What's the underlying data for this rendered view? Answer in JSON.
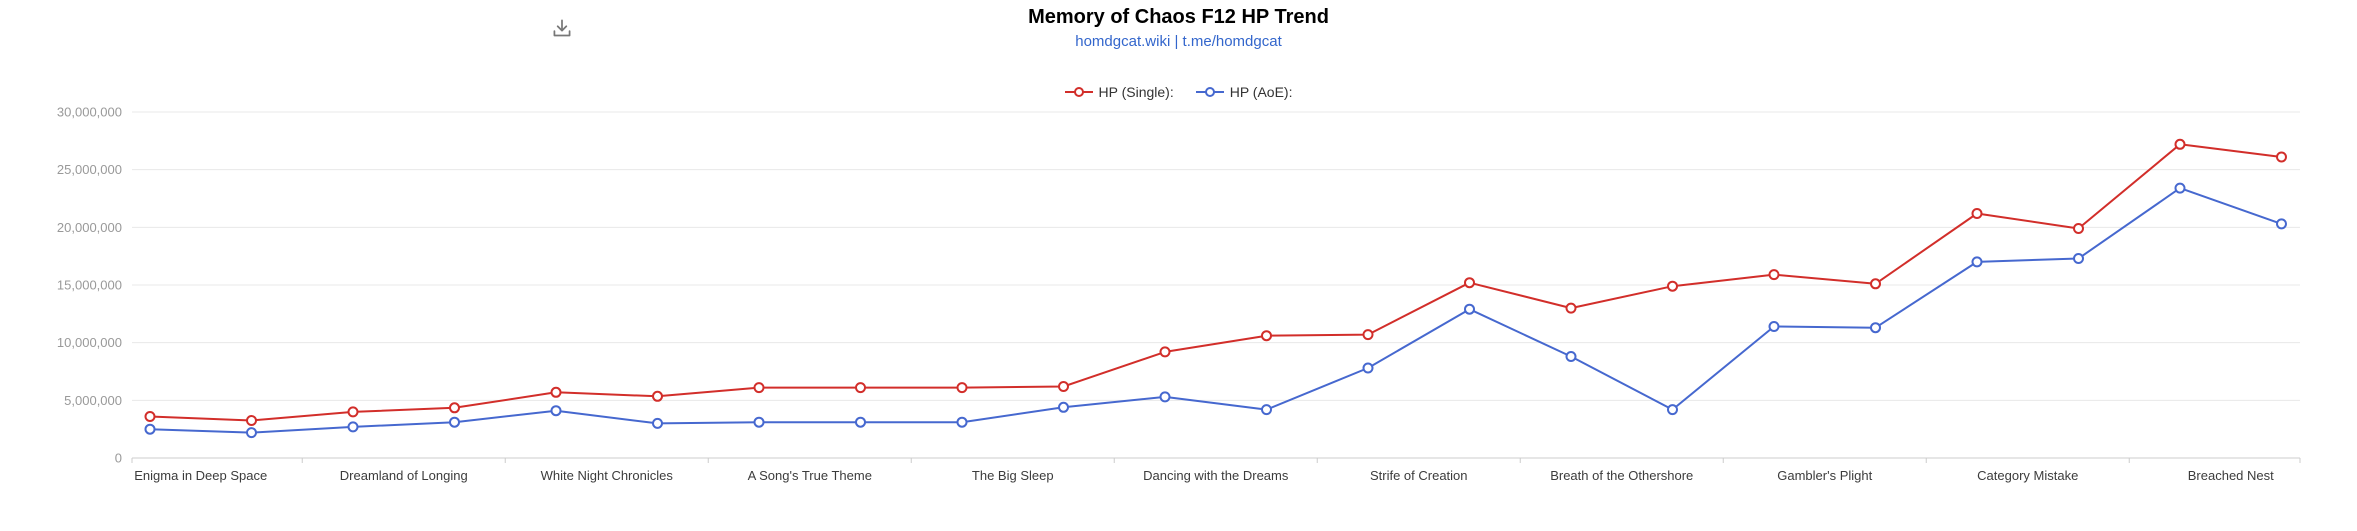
{
  "header": {
    "title": "Memory of Chaos F12 HP Trend",
    "subtitle": "homdgcat.wiki | t.me/homdgcat"
  },
  "toolbox": {
    "download_icon": "save-as-image-icon"
  },
  "legend": {
    "items": [
      {
        "label": "HP (Single):",
        "color": "#d22e2a"
      },
      {
        "label": "HP (AoE):",
        "color": "#4668cf"
      }
    ]
  },
  "chart_data": {
    "type": "line",
    "title": "Memory of Chaos F12 HP Trend",
    "subtitle": "homdgcat.wiki | t.me/homdgcat",
    "categories": [
      "Enigma in Deep Space",
      "Dreamland of Longing",
      "White Night Chronicles",
      "A Song's True Theme",
      "The Big Sleep",
      "Dancing with the Dreams",
      "Strife of Creation",
      "Breath of the Othershore",
      "Gambler's Plight",
      "Category Mistake",
      "Breached Nest"
    ],
    "points_per_category": 2,
    "series": [
      {
        "name": "HP (Single):",
        "color": "#d22e2a",
        "values": [
          3600000,
          3250000,
          4000000,
          4350000,
          5700000,
          5350000,
          6100000,
          6100000,
          6100000,
          6200000,
          9200000,
          10600000,
          10700000,
          15200000,
          13000000,
          14900000,
          15900000,
          15100000,
          21200000,
          19900000,
          27200000,
          26100000
        ]
      },
      {
        "name": "HP (AoE):",
        "color": "#4668cf",
        "values": [
          2500000,
          2200000,
          2700000,
          3100000,
          4100000,
          3000000,
          3100000,
          3100000,
          3100000,
          4400000,
          5300000,
          4200000,
          7800000,
          12900000,
          8800000,
          4200000,
          11400000,
          11300000,
          17000000,
          17300000,
          23400000,
          20300000
        ]
      }
    ],
    "ylim": [
      0,
      30000000
    ],
    "ytick_step": 5000000,
    "ytick_labels": [
      "0",
      "5,000,000",
      "10,000,000",
      "15,000,000",
      "20,000,000",
      "25,000,000",
      "30,000,000"
    ],
    "grid": true,
    "legend_position": "top",
    "marker": "hollow-circle"
  },
  "style": {
    "grid_color": "#e8e8e8",
    "axis_color": "#cccccc",
    "ytick_color": "#999999",
    "xtick_color": "#3c3c3c"
  }
}
